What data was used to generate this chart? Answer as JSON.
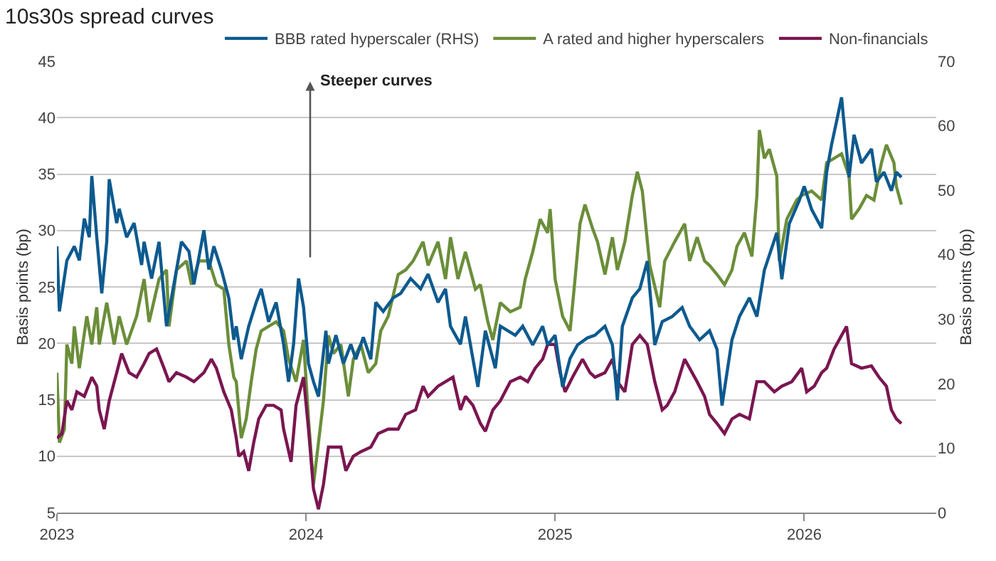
{
  "chart_data": {
    "type": "line",
    "title": "10s30s spread curves",
    "ylabel": "Basis points (bp)",
    "y2label": "Basis points (bp)",
    "xlim": [
      2023,
      2026.53
    ],
    "xticks": [
      2023,
      2024,
      2025,
      2026
    ],
    "ylim": [
      5,
      45
    ],
    "yticks": [
      5,
      10,
      15,
      20,
      25,
      30,
      35,
      40,
      45
    ],
    "y2lim": [
      0,
      70
    ],
    "y2ticks": [
      0,
      10,
      20,
      30,
      40,
      50,
      60,
      70
    ],
    "grid": "y",
    "legend": "top right",
    "line_style": "solid",
    "marker": "none",
    "annotations": [
      "Steeper curves"
    ],
    "series": [
      {
        "name": "BBB rated hyperscaler (RHS)",
        "color": "#0d5a8f",
        "axis": "y2",
        "x": [
          2023.0,
          2023.01,
          2023.04,
          2023.07,
          2023.09,
          2023.11,
          2023.13,
          2023.14,
          2023.16,
          2023.18,
          2023.2,
          2023.21,
          2023.24,
          2023.25,
          2023.28,
          2023.31,
          2023.34,
          2023.35,
          2023.38,
          2023.41,
          2023.44,
          2023.46,
          2023.5,
          2023.53,
          2023.55,
          2023.59,
          2023.61,
          2023.63,
          2023.66,
          2023.69,
          2023.71,
          2023.72,
          2023.74,
          2023.77,
          2023.8,
          2023.82,
          2023.85,
          2023.88,
          2023.91,
          2023.93,
          2023.95,
          2023.97,
          2023.99,
          2024.01,
          2024.03,
          2024.05,
          2024.08,
          2024.09,
          2024.12,
          2024.15,
          2024.18,
          2024.2,
          2024.23,
          2024.26,
          2024.28,
          2024.31,
          2024.35,
          2024.38,
          2024.42,
          2024.46,
          2024.49,
          2024.53,
          2024.56,
          2024.58,
          2024.62,
          2024.64,
          2024.69,
          2024.72,
          2024.76,
          2024.78,
          2024.84,
          2024.87,
          2024.91,
          2024.95,
          2024.97,
          2025.0,
          2025.03,
          2025.06,
          2025.09,
          2025.13,
          2025.16,
          2025.2,
          2025.23,
          2025.25,
          2025.27,
          2025.31,
          2025.34,
          2025.37,
          2025.4,
          2025.43,
          2025.47,
          2025.51,
          2025.54,
          2025.58,
          2025.62,
          2025.65,
          2025.67,
          2025.71,
          2025.74,
          2025.78,
          2025.81,
          2025.84,
          2025.89,
          2025.91,
          2025.94,
          2025.98,
          2026.0,
          2026.03,
          2026.07,
          2026.09,
          2026.11,
          2026.13,
          2026.15,
          2026.18,
          2026.2,
          2026.23,
          2026.27,
          2026.29,
          2026.32,
          2026.35,
          2026.37,
          2026.39
        ],
        "values": [
          41.3,
          31.2,
          39.1,
          41.3,
          39.1,
          45.6,
          42.7,
          52.2,
          42.7,
          34.0,
          42.0,
          51.7,
          44.9,
          47.1,
          42.7,
          44.9,
          38.4,
          42.0,
          36.3,
          42.0,
          28.9,
          33.3,
          42.0,
          40.5,
          35.4,
          43.8,
          37.7,
          41.3,
          37.7,
          33.3,
          26.8,
          28.9,
          23.8,
          28.9,
          32.6,
          34.7,
          29.6,
          32.6,
          26.1,
          20.3,
          26.1,
          36.3,
          31.9,
          23.1,
          20.3,
          18.0,
          28.2,
          23.1,
          27.5,
          23.1,
          26.1,
          23.8,
          27.2,
          23.8,
          32.6,
          31.2,
          33.3,
          34.0,
          36.3,
          34.7,
          37.0,
          32.6,
          34.7,
          28.9,
          26.1,
          30.4,
          19.5,
          28.2,
          22.4,
          28.9,
          27.5,
          28.9,
          26.0,
          28.9,
          26.0,
          27.5,
          19.5,
          23.9,
          26.0,
          27.1,
          27.5,
          28.9,
          26.0,
          17.4,
          28.9,
          33.3,
          34.7,
          39.0,
          26.0,
          29.6,
          30.4,
          31.8,
          28.9,
          26.8,
          28.2,
          25.3,
          16.6,
          26.8,
          30.4,
          33.3,
          30.4,
          37.6,
          43.4,
          36.2,
          44.8,
          48.4,
          50.6,
          47.0,
          44.1,
          52.8,
          57.1,
          60.7,
          64.4,
          52.0,
          58.6,
          54.2,
          56.4,
          51.3,
          52.8,
          49.9,
          52.8,
          52.0
        ]
      },
      {
        "name": "A rated and higher hyperscalers",
        "color": "#6b8e3a",
        "x": [
          2023.0,
          2023.01,
          2023.03,
          2023.04,
          2023.06,
          2023.07,
          2023.09,
          2023.12,
          2023.14,
          2023.16,
          2023.17,
          2023.2,
          2023.23,
          2023.25,
          2023.28,
          2023.32,
          2023.35,
          2023.37,
          2023.41,
          2023.44,
          2023.45,
          2023.48,
          2023.52,
          2023.54,
          2023.57,
          2023.61,
          2023.64,
          2023.67,
          2023.69,
          2023.71,
          2023.72,
          2023.74,
          2023.76,
          2023.78,
          2023.8,
          2023.82,
          2023.85,
          2023.88,
          2023.91,
          2023.93,
          2023.96,
          2023.99,
          2024.01,
          2024.03,
          2024.05,
          2024.07,
          2024.09,
          2024.11,
          2024.14,
          2024.17,
          2024.19,
          2024.22,
          2024.25,
          2024.28,
          2024.3,
          2024.33,
          2024.37,
          2024.4,
          2024.43,
          2024.47,
          2024.49,
          2024.53,
          2024.56,
          2024.58,
          2024.61,
          2024.64,
          2024.68,
          2024.7,
          2024.73,
          2024.75,
          2024.78,
          2024.82,
          2024.86,
          2024.88,
          2024.91,
          2024.94,
          2024.97,
          2024.98,
          2025.0,
          2025.03,
          2025.06,
          2025.08,
          2025.1,
          2025.12,
          2025.15,
          2025.17,
          2025.2,
          2025.23,
          2025.25,
          2025.28,
          2025.31,
          2025.33,
          2025.35,
          2025.38,
          2025.42,
          2025.44,
          2025.48,
          2025.52,
          2025.54,
          2025.57,
          2025.6,
          2025.62,
          2025.65,
          2025.68,
          2025.71,
          2025.73,
          2025.76,
          2025.79,
          2025.81,
          2025.82,
          2025.84,
          2025.86,
          2025.89,
          2025.9,
          2025.93,
          2025.97,
          2025.99,
          2026.03,
          2026.07,
          2026.09,
          2026.12,
          2026.15,
          2026.18,
          2026.19,
          2026.22,
          2026.25,
          2026.28,
          2026.31,
          2026.33,
          2026.36,
          2026.37,
          2026.39
        ],
        "values": [
          17.4,
          11.2,
          12.4,
          19.9,
          18.2,
          21.5,
          17.8,
          22.4,
          19.9,
          23.2,
          19.9,
          23.6,
          19.9,
          22.4,
          19.9,
          22.4,
          25.7,
          21.9,
          25.7,
          26.5,
          21.5,
          26.5,
          27.3,
          25.2,
          27.3,
          27.3,
          25.2,
          24.8,
          19.9,
          17.0,
          16.6,
          11.6,
          13.3,
          16.6,
          19.5,
          21.1,
          21.5,
          21.9,
          21.1,
          18.6,
          16.6,
          20.3,
          13.3,
          7.5,
          11.2,
          14.9,
          20.7,
          19.1,
          19.9,
          15.3,
          18.6,
          19.9,
          17.4,
          18.2,
          21.1,
          22.4,
          26.1,
          26.5,
          27.3,
          29.0,
          26.9,
          29.0,
          25.7,
          29.4,
          25.7,
          28.1,
          24.8,
          25.2,
          21.9,
          20.3,
          23.6,
          22.8,
          23.2,
          25.7,
          28.1,
          31.0,
          29.8,
          31.9,
          25.7,
          22.4,
          21.1,
          25.7,
          30.6,
          32.3,
          30.2,
          29.0,
          26.1,
          29.4,
          26.5,
          29.0,
          33.1,
          35.2,
          33.5,
          26.9,
          23.2,
          27.3,
          29.0,
          30.6,
          27.3,
          29.4,
          27.3,
          26.9,
          26.1,
          25.2,
          26.5,
          28.6,
          29.8,
          27.7,
          33.1,
          38.9,
          36.4,
          37.2,
          34.8,
          27.3,
          31.0,
          32.7,
          33.1,
          33.5,
          32.7,
          36.0,
          36.4,
          36.8,
          34.8,
          31.0,
          31.9,
          33.1,
          32.7,
          36.0,
          37.6,
          36.0,
          33.9,
          32.3
        ]
      },
      {
        "name": "Non-financials",
        "color": "#7a1650",
        "x": [
          2023.0,
          2023.02,
          2023.04,
          2023.06,
          2023.08,
          2023.11,
          2023.14,
          2023.16,
          2023.17,
          2023.19,
          2023.21,
          2023.24,
          2023.26,
          2023.29,
          2023.32,
          2023.35,
          2023.37,
          2023.4,
          2023.43,
          2023.45,
          2023.48,
          2023.52,
          2023.55,
          2023.59,
          2023.62,
          2023.64,
          2023.67,
          2023.7,
          2023.72,
          2023.73,
          2023.75,
          2023.77,
          2023.79,
          2023.81,
          2023.84,
          2023.87,
          2023.9,
          2023.91,
          2023.94,
          2023.96,
          2023.99,
          2024.01,
          2024.03,
          2024.05,
          2024.07,
          2024.09,
          2024.11,
          2024.14,
          2024.16,
          2024.19,
          2024.22,
          2024.26,
          2024.29,
          2024.33,
          2024.37,
          2024.4,
          2024.44,
          2024.47,
          2024.49,
          2024.53,
          2024.56,
          2024.59,
          2024.62,
          2024.64,
          2024.67,
          2024.7,
          2024.72,
          2024.75,
          2024.78,
          2024.82,
          2024.86,
          2024.89,
          2024.92,
          2024.95,
          2024.97,
          2025.0,
          2025.02,
          2025.04,
          2025.07,
          2025.11,
          2025.14,
          2025.16,
          2025.2,
          2025.23,
          2025.25,
          2025.28,
          2025.31,
          2025.34,
          2025.37,
          2025.4,
          2025.43,
          2025.45,
          2025.48,
          2025.52,
          2025.54,
          2025.57,
          2025.6,
          2025.62,
          2025.65,
          2025.68,
          2025.71,
          2025.74,
          2025.78,
          2025.81,
          2025.84,
          2025.88,
          2025.91,
          2025.95,
          2025.99,
          2026.01,
          2026.04,
          2026.07,
          2026.09,
          2026.12,
          2026.15,
          2026.17,
          2026.19,
          2026.23,
          2026.27,
          2026.3,
          2026.33,
          2026.35,
          2026.37,
          2026.39
        ],
        "values": [
          11.6,
          12.0,
          14.9,
          14.1,
          15.7,
          15.3,
          17.0,
          16.2,
          14.1,
          12.4,
          14.9,
          17.4,
          19.1,
          17.4,
          17.0,
          18.2,
          19.1,
          19.5,
          17.8,
          16.6,
          17.4,
          17.0,
          16.6,
          17.4,
          18.6,
          17.8,
          15.7,
          14.1,
          11.6,
          10.0,
          10.4,
          8.7,
          11.2,
          13.3,
          14.5,
          14.5,
          14.1,
          12.4,
          9.5,
          14.5,
          17.0,
          12.4,
          7.1,
          5.3,
          7.5,
          10.8,
          10.8,
          10.8,
          8.7,
          10.0,
          10.4,
          10.8,
          12.0,
          12.4,
          12.4,
          13.7,
          14.1,
          16.2,
          15.3,
          16.2,
          16.6,
          17.0,
          14.1,
          15.3,
          14.5,
          12.9,
          12.2,
          14.1,
          14.9,
          16.6,
          17.0,
          16.6,
          17.8,
          18.6,
          19.9,
          19.9,
          17.4,
          15.7,
          17.0,
          18.6,
          17.4,
          17.0,
          17.4,
          18.6,
          16.6,
          15.7,
          19.9,
          20.7,
          19.9,
          16.6,
          14.1,
          14.5,
          15.7,
          18.6,
          17.8,
          16.6,
          15.3,
          13.7,
          12.9,
          12.0,
          13.3,
          13.7,
          13.3,
          16.6,
          16.6,
          15.7,
          16.2,
          16.6,
          17.8,
          15.7,
          16.2,
          17.4,
          17.8,
          19.5,
          20.7,
          21.5,
          18.2,
          17.8,
          18.0,
          17.0,
          16.2,
          14.1,
          13.3,
          12.9
        ]
      }
    ]
  }
}
